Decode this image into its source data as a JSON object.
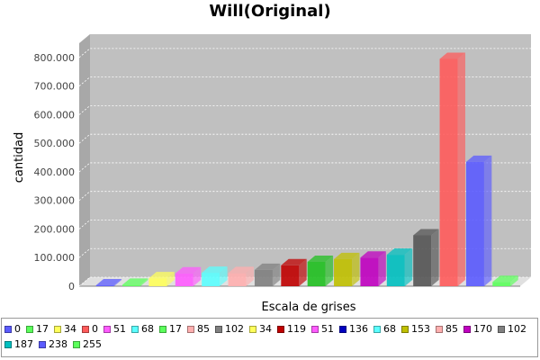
{
  "chart_data": {
    "type": "bar",
    "title": "Will(Original)",
    "xlabel": "Escala de grises",
    "ylabel": "cantidad",
    "ylim": [
      0,
      850000
    ],
    "y_ticks": [
      0,
      100000,
      200000,
      300000,
      400000,
      500000,
      600000,
      700000,
      800000
    ],
    "y_tick_labels": [
      "0",
      "100.000",
      "200.000",
      "300.000",
      "400.000",
      "500.000",
      "600.000",
      "700.000",
      "800.000"
    ],
    "grid": true,
    "legend_position": "bottom",
    "series": [
      {
        "name": "0",
        "color": "#5b5bff",
        "value": 0
      },
      {
        "name": "17",
        "color": "#5bff5b",
        "value": 5000
      },
      {
        "name": "34",
        "color": "#ffff5b",
        "value": 28000
      },
      {
        "name": "0",
        "color": "#ff5b5b",
        "value": 0
      },
      {
        "name": "51",
        "color": "#ff5bff",
        "value": 45000
      },
      {
        "name": "68",
        "color": "#5bffff",
        "value": 47000
      },
      {
        "name": "17",
        "color": "#5bff5b",
        "value": 0
      },
      {
        "name": "85",
        "color": "#ffafaf",
        "value": 46000
      },
      {
        "name": "102",
        "color": "#808080",
        "value": 57000
      },
      {
        "name": "34",
        "color": "#ffff5b",
        "value": 0
      },
      {
        "name": "119",
        "color": "#c00000",
        "value": 73000
      },
      {
        "name": "51",
        "color": "#ff5bff",
        "value": 0
      },
      {
        "name": "136",
        "color": "#0000c0",
        "value": 0
      },
      {
        "name": "68",
        "color": "#5bffff",
        "value": 0
      },
      {
        "name": "153",
        "color": "#c0c000",
        "value": 95000
      },
      {
        "name": "85",
        "color": "#ffafaf",
        "value": 0
      },
      {
        "name": "170",
        "color": "#c000c0",
        "value": 100000
      },
      {
        "name": "102",
        "color": "#808080",
        "value": 0
      },
      {
        "name": "187",
        "color": "#00c0c0",
        "value": 110000
      },
      {
        "name": "238",
        "color": "#5b5bff",
        "value": 435000
      },
      {
        "name": "255",
        "color": "#5bff5b",
        "value": 15000
      }
    ],
    "bar_slots": [
      0,
      1,
      2,
      -1,
      3,
      4,
      -1,
      5,
      6,
      -1,
      7,
      -1,
      -1,
      -1,
      9,
      -1,
      10,
      -1,
      11,
      14,
      15
    ],
    "extra_bars": [
      {
        "slot": 8,
        "color": "#20c020",
        "value": 85000
      },
      {
        "slot": 12,
        "color": "#555555",
        "value": 178000
      },
      {
        "slot": 13,
        "color": "#ff5b5b",
        "value": 795000
      }
    ]
  }
}
